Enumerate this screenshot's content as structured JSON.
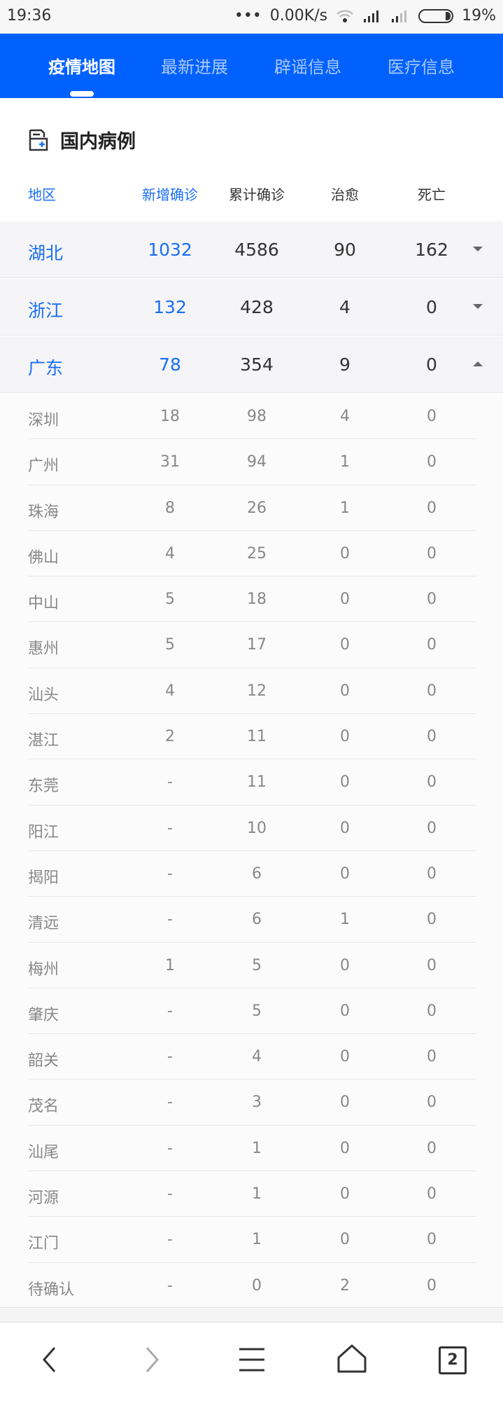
{
  "status_bar": {
    "time": "19:36",
    "network_speed": "0.00K/s",
    "battery": "19%"
  },
  "header": {
    "tabs": [
      {
        "label": "疫情地图",
        "active": true
      },
      {
        "label": "最新进展"
      },
      {
        "label": "辟谣信息"
      },
      {
        "label": "医疗信息"
      }
    ],
    "accent_color": "#0061ff"
  },
  "section": {
    "title": "国内病例",
    "icon": "medical-record-icon"
  },
  "columns": [
    "地区",
    "新增确诊",
    "累计确诊",
    "治愈",
    "死亡"
  ],
  "provinces": [
    {
      "name": "湖北",
      "new": "1032",
      "total": "4586",
      "cured": "90",
      "dead": "162",
      "expanded": false
    },
    {
      "name": "浙江",
      "new": "132",
      "total": "428",
      "cured": "4",
      "dead": "0",
      "expanded": false
    },
    {
      "name": "广东",
      "new": "78",
      "total": "354",
      "cured": "9",
      "dead": "0",
      "expanded": true
    }
  ],
  "cities": [
    [
      "深圳",
      "18",
      "98",
      "4",
      "0"
    ],
    [
      "广州",
      "31",
      "94",
      "1",
      "0"
    ],
    [
      "珠海",
      "8",
      "26",
      "1",
      "0"
    ],
    [
      "佛山",
      "4",
      "25",
      "0",
      "0"
    ],
    [
      "中山",
      "5",
      "18",
      "0",
      "0"
    ],
    [
      "惠州",
      "5",
      "17",
      "0",
      "0"
    ],
    [
      "汕头",
      "4",
      "12",
      "0",
      "0"
    ],
    [
      "湛江",
      "2",
      "11",
      "0",
      "0"
    ],
    [
      "东莞",
      "-",
      "11",
      "0",
      "0"
    ],
    [
      "阳江",
      "-",
      "10",
      "0",
      "0"
    ],
    [
      "揭阳",
      "-",
      "6",
      "0",
      "0"
    ],
    [
      "清远",
      "-",
      "6",
      "1",
      "0"
    ],
    [
      "梅州",
      "1",
      "5",
      "0",
      "0"
    ],
    [
      "肇庆",
      "-",
      "5",
      "0",
      "0"
    ],
    [
      "韶关",
      "-",
      "4",
      "0",
      "0"
    ],
    [
      "茂名",
      "-",
      "3",
      "0",
      "0"
    ],
    [
      "汕尾",
      "-",
      "1",
      "0",
      "0"
    ],
    [
      "河源",
      "-",
      "1",
      "0",
      "0"
    ],
    [
      "江门",
      "-",
      "1",
      "0",
      "0"
    ],
    [
      "待确认",
      "-",
      "0",
      "2",
      "0"
    ]
  ],
  "bottom_nav": {
    "tab_count": "2",
    "icons": [
      "back-icon",
      "forward-icon",
      "menu-icon",
      "home-icon",
      "tabs-icon"
    ]
  }
}
